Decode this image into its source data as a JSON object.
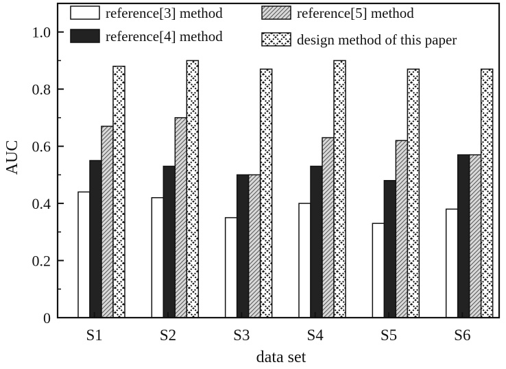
{
  "chart_data": {
    "type": "bar",
    "categories": [
      "S1",
      "S2",
      "S3",
      "S4",
      "S5",
      "S6"
    ],
    "series": [
      {
        "name": "reference[3] method",
        "values": [
          0.44,
          0.42,
          0.35,
          0.4,
          0.33,
          0.38
        ],
        "fill": "#ffffff",
        "pattern": "none"
      },
      {
        "name": "reference[4] method",
        "values": [
          0.55,
          0.53,
          0.5,
          0.53,
          0.48,
          0.57
        ],
        "fill": "#222222",
        "pattern": "solid"
      },
      {
        "name": "reference[5] method",
        "values": [
          0.67,
          0.7,
          0.5,
          0.63,
          0.62,
          0.57
        ],
        "fill": "#d8d8d8",
        "pattern": "diagonal"
      },
      {
        "name": "design method of this paper",
        "values": [
          0.88,
          0.9,
          0.87,
          0.9,
          0.87,
          0.87
        ],
        "fill": "#ffffff",
        "pattern": "cross"
      }
    ],
    "title": "",
    "xlabel": "data set",
    "ylabel": "AUC",
    "ylim": [
      0,
      1.1
    ],
    "yticks": [
      "0",
      "0.2",
      "0.4",
      "0.6",
      "0.8",
      "1.0"
    ],
    "ytick_values": [
      0,
      0.2,
      0.4,
      0.6,
      0.8,
      1.0
    ],
    "grid": false,
    "legend_position": "top",
    "legend_columns": 2
  }
}
